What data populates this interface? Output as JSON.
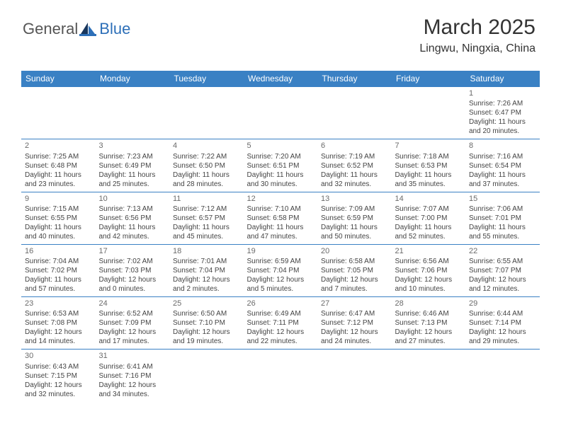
{
  "logo": {
    "text1": "General",
    "text2": "Blue"
  },
  "header": {
    "month": "March 2025",
    "location": "Lingwu, Ningxia, China"
  },
  "colors": {
    "header_bg": "#3a81c4",
    "header_fg": "#ffffff",
    "border": "#3a81c4",
    "daynum": "#6b6b6b"
  },
  "weekdays": [
    "Sunday",
    "Monday",
    "Tuesday",
    "Wednesday",
    "Thursday",
    "Friday",
    "Saturday"
  ],
  "labels": {
    "sunrise": "Sunrise:",
    "sunset": "Sunset:",
    "daylight": "Daylight:"
  },
  "weeks": [
    [
      null,
      null,
      null,
      null,
      null,
      null,
      {
        "n": "1",
        "sr": "7:26 AM",
        "ss": "6:47 PM",
        "dl": "11 hours and 20 minutes."
      }
    ],
    [
      {
        "n": "2",
        "sr": "7:25 AM",
        "ss": "6:48 PM",
        "dl": "11 hours and 23 minutes."
      },
      {
        "n": "3",
        "sr": "7:23 AM",
        "ss": "6:49 PM",
        "dl": "11 hours and 25 minutes."
      },
      {
        "n": "4",
        "sr": "7:22 AM",
        "ss": "6:50 PM",
        "dl": "11 hours and 28 minutes."
      },
      {
        "n": "5",
        "sr": "7:20 AM",
        "ss": "6:51 PM",
        "dl": "11 hours and 30 minutes."
      },
      {
        "n": "6",
        "sr": "7:19 AM",
        "ss": "6:52 PM",
        "dl": "11 hours and 32 minutes."
      },
      {
        "n": "7",
        "sr": "7:18 AM",
        "ss": "6:53 PM",
        "dl": "11 hours and 35 minutes."
      },
      {
        "n": "8",
        "sr": "7:16 AM",
        "ss": "6:54 PM",
        "dl": "11 hours and 37 minutes."
      }
    ],
    [
      {
        "n": "9",
        "sr": "7:15 AM",
        "ss": "6:55 PM",
        "dl": "11 hours and 40 minutes."
      },
      {
        "n": "10",
        "sr": "7:13 AM",
        "ss": "6:56 PM",
        "dl": "11 hours and 42 minutes."
      },
      {
        "n": "11",
        "sr": "7:12 AM",
        "ss": "6:57 PM",
        "dl": "11 hours and 45 minutes."
      },
      {
        "n": "12",
        "sr": "7:10 AM",
        "ss": "6:58 PM",
        "dl": "11 hours and 47 minutes."
      },
      {
        "n": "13",
        "sr": "7:09 AM",
        "ss": "6:59 PM",
        "dl": "11 hours and 50 minutes."
      },
      {
        "n": "14",
        "sr": "7:07 AM",
        "ss": "7:00 PM",
        "dl": "11 hours and 52 minutes."
      },
      {
        "n": "15",
        "sr": "7:06 AM",
        "ss": "7:01 PM",
        "dl": "11 hours and 55 minutes."
      }
    ],
    [
      {
        "n": "16",
        "sr": "7:04 AM",
        "ss": "7:02 PM",
        "dl": "11 hours and 57 minutes."
      },
      {
        "n": "17",
        "sr": "7:02 AM",
        "ss": "7:03 PM",
        "dl": "12 hours and 0 minutes."
      },
      {
        "n": "18",
        "sr": "7:01 AM",
        "ss": "7:04 PM",
        "dl": "12 hours and 2 minutes."
      },
      {
        "n": "19",
        "sr": "6:59 AM",
        "ss": "7:04 PM",
        "dl": "12 hours and 5 minutes."
      },
      {
        "n": "20",
        "sr": "6:58 AM",
        "ss": "7:05 PM",
        "dl": "12 hours and 7 minutes."
      },
      {
        "n": "21",
        "sr": "6:56 AM",
        "ss": "7:06 PM",
        "dl": "12 hours and 10 minutes."
      },
      {
        "n": "22",
        "sr": "6:55 AM",
        "ss": "7:07 PM",
        "dl": "12 hours and 12 minutes."
      }
    ],
    [
      {
        "n": "23",
        "sr": "6:53 AM",
        "ss": "7:08 PM",
        "dl": "12 hours and 14 minutes."
      },
      {
        "n": "24",
        "sr": "6:52 AM",
        "ss": "7:09 PM",
        "dl": "12 hours and 17 minutes."
      },
      {
        "n": "25",
        "sr": "6:50 AM",
        "ss": "7:10 PM",
        "dl": "12 hours and 19 minutes."
      },
      {
        "n": "26",
        "sr": "6:49 AM",
        "ss": "7:11 PM",
        "dl": "12 hours and 22 minutes."
      },
      {
        "n": "27",
        "sr": "6:47 AM",
        "ss": "7:12 PM",
        "dl": "12 hours and 24 minutes."
      },
      {
        "n": "28",
        "sr": "6:46 AM",
        "ss": "7:13 PM",
        "dl": "12 hours and 27 minutes."
      },
      {
        "n": "29",
        "sr": "6:44 AM",
        "ss": "7:14 PM",
        "dl": "12 hours and 29 minutes."
      }
    ],
    [
      {
        "n": "30",
        "sr": "6:43 AM",
        "ss": "7:15 PM",
        "dl": "12 hours and 32 minutes."
      },
      {
        "n": "31",
        "sr": "6:41 AM",
        "ss": "7:16 PM",
        "dl": "12 hours and 34 minutes."
      },
      null,
      null,
      null,
      null,
      null
    ]
  ]
}
